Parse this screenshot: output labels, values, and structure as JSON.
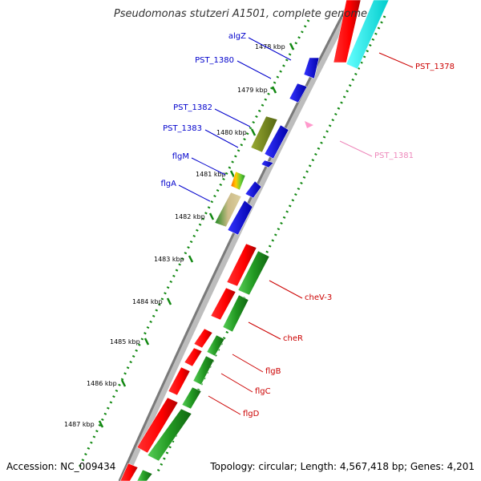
{
  "title": "Pseudomonas stutzeri A1501, complete genome",
  "accession_text": "Accession: NC_009434",
  "summary_text": "Topology: circular; Length: 4,567,418 bp; Genes: 4,201",
  "colors": {
    "backbone": "#8c8c8c",
    "tick_dots": "#118811",
    "forward_label": "#0000cc",
    "reverse_label": "#cc0000",
    "pale_label": "#ee88bb"
  },
  "ticks": [
    "1478 kbp",
    "1479 kbp",
    "1480 kbp",
    "1481 kbp",
    "1482 kbp",
    "1483 kbp",
    "1484 kbp",
    "1485 kbp",
    "1486 kbp",
    "1487 kbp"
  ],
  "gene_labels": [
    {
      "text": "algZ",
      "strand": "forward"
    },
    {
      "text": "PST_1380",
      "strand": "forward"
    },
    {
      "text": "PST_1382",
      "strand": "forward"
    },
    {
      "text": "PST_1383",
      "strand": "forward"
    },
    {
      "text": "flgM",
      "strand": "forward"
    },
    {
      "text": "flgA",
      "strand": "forward"
    },
    {
      "text": "PST_1378",
      "strand": "reverse"
    },
    {
      "text": "PST_1381",
      "strand": "pale"
    },
    {
      "text": "cheV-3",
      "strand": "reverse"
    },
    {
      "text": "cheR",
      "strand": "reverse"
    },
    {
      "text": "flgB",
      "strand": "reverse"
    },
    {
      "text": "flgC",
      "strand": "reverse"
    },
    {
      "text": "flgD",
      "strand": "reverse"
    }
  ]
}
